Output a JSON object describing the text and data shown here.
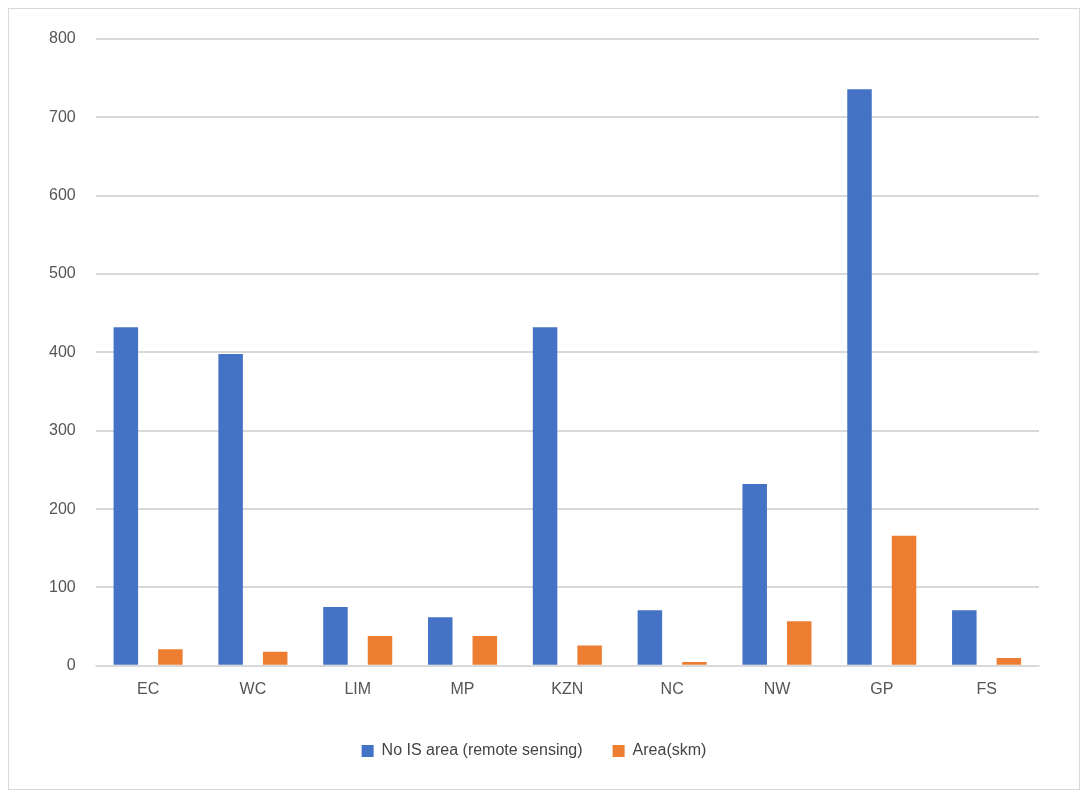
{
  "chart_data": {
    "type": "bar",
    "categories": [
      "EC",
      "WC",
      "LIM",
      "MP",
      "KZN",
      "NC",
      "NW",
      "GP",
      "FS"
    ],
    "series": [
      {
        "name": "No IS area (remote sensing)",
        "color": "#4472c4",
        "values": [
          432,
          398,
          75,
          62,
          432,
          71,
          232,
          736,
          71
        ]
      },
      {
        "name": "Area(skm)",
        "color": "#ed7d31",
        "values": [
          21,
          18,
          38,
          38,
          26,
          5,
          57,
          166,
          10
        ]
      }
    ],
    "ylim": [
      0,
      800
    ],
    "yticks": [
      0,
      100,
      200,
      300,
      400,
      500,
      600,
      700,
      800
    ],
    "grid": "y",
    "legend": "bottom"
  }
}
